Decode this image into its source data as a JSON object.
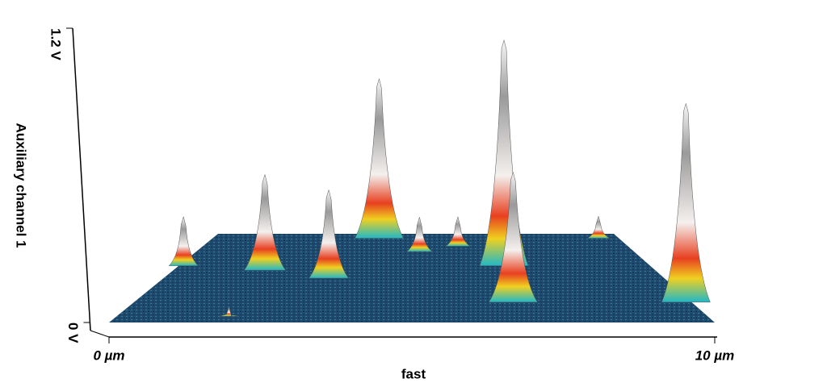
{
  "chart_data": {
    "type": "surface3d",
    "z_label": "Auxiliary channel 1",
    "x_label": "fast",
    "zlim": [
      0,
      1.2
    ],
    "zticks": [
      {
        "value": 0,
        "label": "0 V"
      },
      {
        "value": 1.2,
        "label": "1.2 V"
      }
    ],
    "xlim": [
      0,
      10
    ],
    "xticks": [
      {
        "value": 0,
        "label": "0 µm"
      },
      {
        "value": 10,
        "label": "10 µm"
      }
    ],
    "peaks": {
      "x": [
        0.1,
        1.9,
        3.3,
        4.1,
        5.1,
        6.0,
        6.9,
        6.8,
        9.5,
        9.9,
        1.9
      ],
      "depth": [
        0.64,
        0.59,
        0.5,
        0.95,
        0.8,
        0.86,
        0.64,
        0.23,
        0.95,
        0.23,
        0.07
      ],
      "height": [
        0.2,
        0.39,
        0.36,
        0.65,
        0.14,
        0.12,
        0.92,
        0.53,
        0.09,
        0.81,
        0.04
      ]
    },
    "floor_color": "#1f4a6e"
  }
}
